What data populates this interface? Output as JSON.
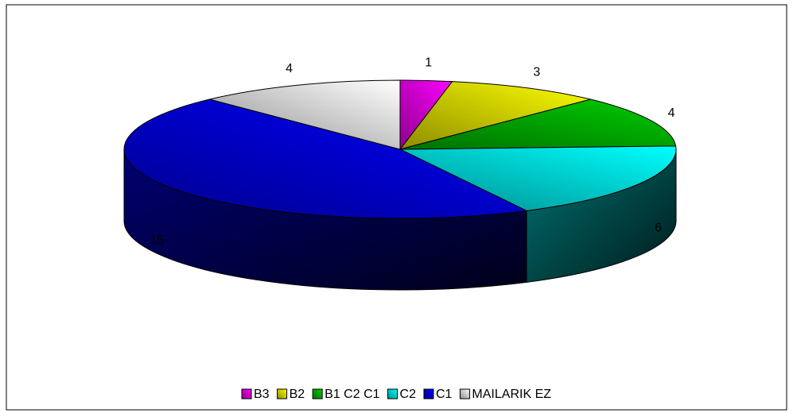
{
  "chart_data": {
    "type": "pie3d",
    "categories": [
      "B3",
      "B2",
      "B1 C2 C1",
      "C2",
      "C1",
      "MAILARIK EZ"
    ],
    "values": [
      1,
      3,
      4,
      6,
      15,
      4
    ],
    "colors": [
      "#ff00ff",
      "#ffff00",
      "#00cc00",
      "#00ffff",
      "#0000ff",
      "#ffffff"
    ],
    "legend": "bottom"
  }
}
